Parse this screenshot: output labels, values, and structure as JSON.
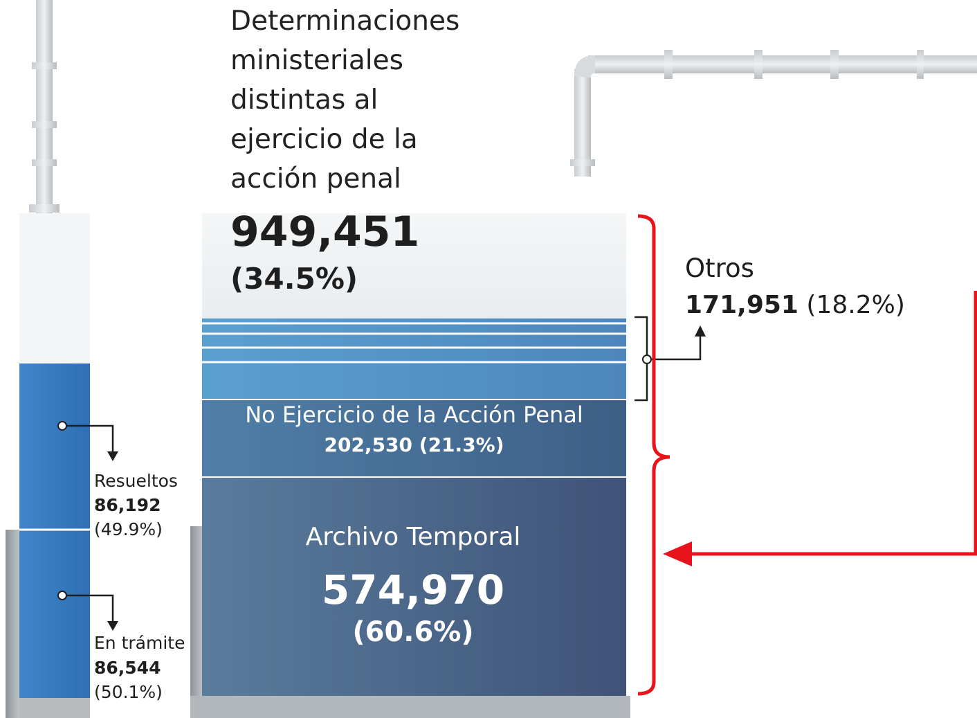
{
  "title": "Determinaciones ministeriales distintas al ejercicio de la acción penal",
  "total": {
    "value": "949,451",
    "percent": "(34.5%)"
  },
  "otros": {
    "label": "Otros",
    "value": "171,951",
    "percent": "(18.2%)"
  },
  "no_ejercicio": {
    "label": "No Ejercicio de la Acción Penal",
    "value": "202,530",
    "percent": "(21.3%)"
  },
  "archivo_temporal": {
    "label": "Archivo Temporal",
    "value": "574,970",
    "percent": "(60.6%)"
  },
  "resueltos": {
    "label": "Resueltos",
    "value": "86,192",
    "percent": "(49.9%)"
  },
  "en_tramite": {
    "label": "En trámite",
    "value": "86,544",
    "percent": "(50.1%)"
  }
}
